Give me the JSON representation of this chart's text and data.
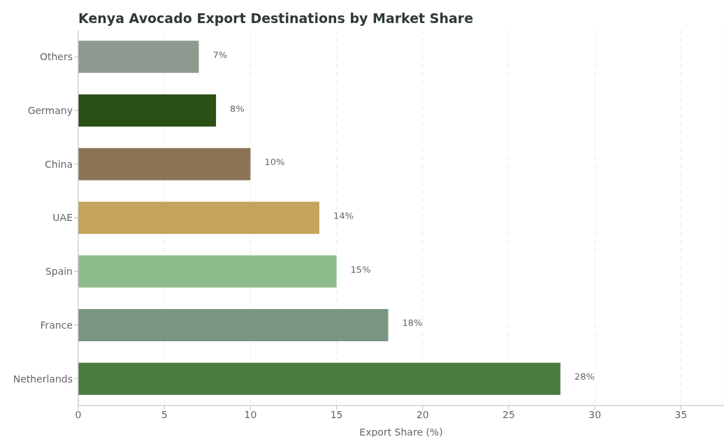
{
  "chart_data": {
    "type": "bar",
    "orientation": "horizontal",
    "title": "Kenya Avocado Export Destinations by Market Share",
    "xlabel": "Export Share (%)",
    "categories": [
      "Others",
      "Germany",
      "China",
      "UAE",
      "Spain",
      "France",
      "Netherlands"
    ],
    "values": [
      7,
      8,
      10,
      14,
      15,
      18,
      28
    ],
    "colors": [
      "#8e9a8f",
      "#2b5016",
      "#8b7355",
      "#c4a35a",
      "#8fbc8b",
      "#7a9582",
      "#4a7c3f"
    ],
    "value_labels": [
      "7%",
      "8%",
      "10%",
      "14%",
      "15%",
      "18%",
      "28%"
    ],
    "xlim": [
      0,
      37.5
    ],
    "xticks": [
      0,
      5,
      10,
      15,
      20,
      25,
      30,
      35
    ],
    "grid": "x"
  }
}
